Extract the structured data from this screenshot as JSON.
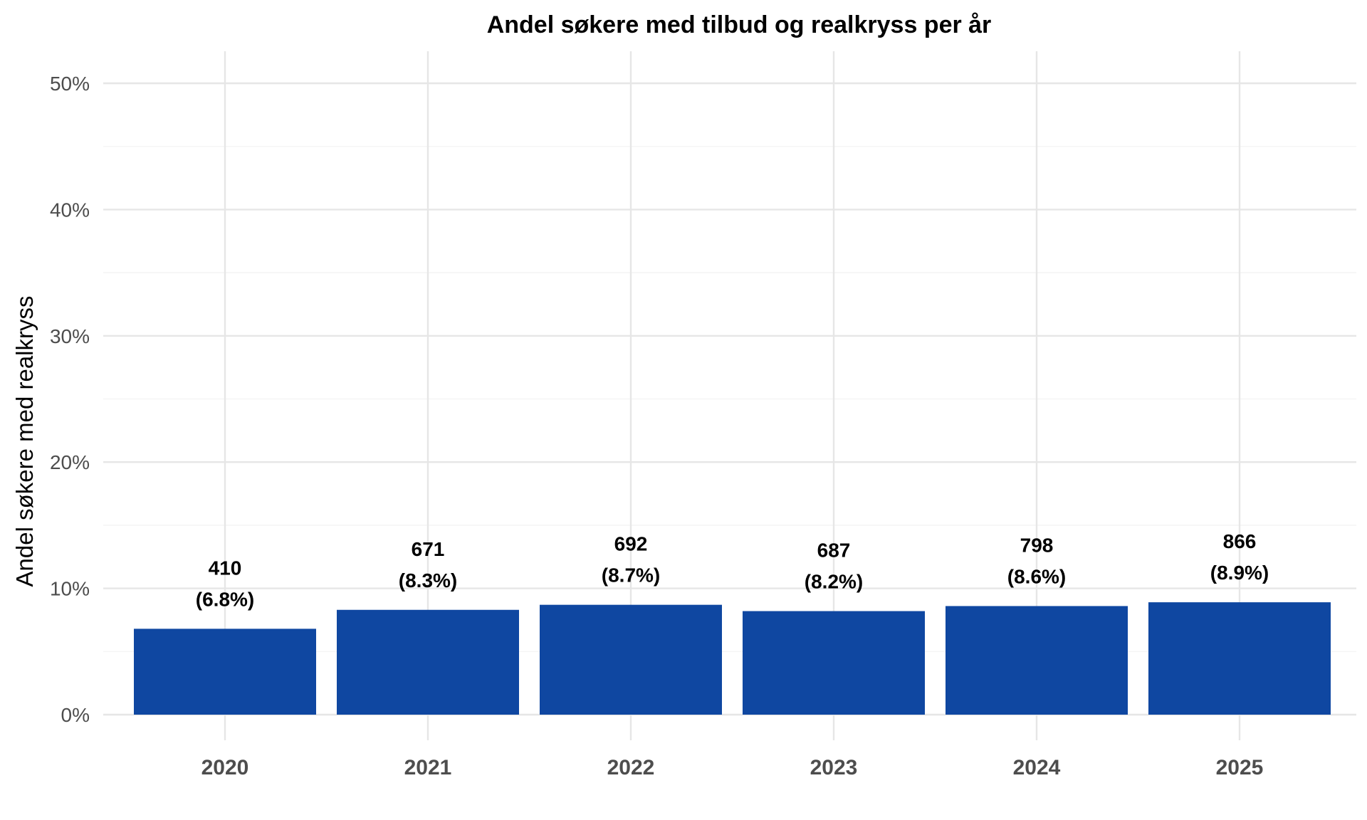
{
  "chart_data": {
    "type": "bar",
    "title": "Andel søkere med tilbud og realkryss per år",
    "xlabel": "",
    "ylabel": "Andel søkere med realkryss",
    "categories": [
      "2020",
      "2021",
      "2022",
      "2023",
      "2024",
      "2025"
    ],
    "values": [
      6.8,
      8.3,
      8.7,
      8.2,
      8.6,
      8.9
    ],
    "counts": [
      "410",
      "671",
      "692",
      "687",
      "798",
      "866"
    ],
    "percent_labels": [
      "(6.8%)",
      "(8.3%)",
      "(8.7%)",
      "(8.2%)",
      "(8.6%)",
      "(8.9%)"
    ],
    "ylim": [
      0,
      50
    ],
    "yticks": [
      0,
      10,
      20,
      30,
      40,
      50
    ],
    "ytick_labels": [
      "0%",
      "10%",
      "20%",
      "30%",
      "40%",
      "50%"
    ],
    "grid": true,
    "legend": "none",
    "bar_color": "#0f47a1"
  }
}
